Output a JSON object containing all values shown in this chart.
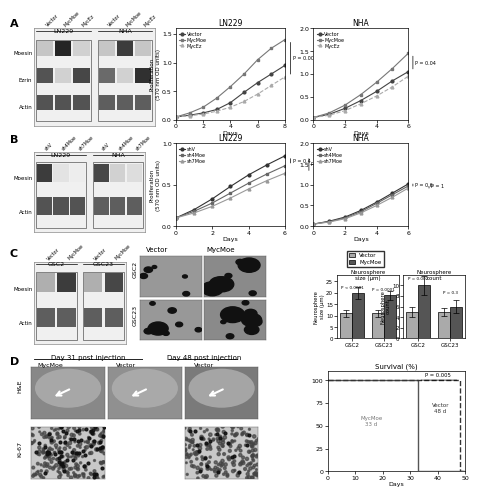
{
  "panel_A": {
    "LN229_prolif": {
      "days": [
        0,
        1,
        2,
        3,
        4,
        5,
        6,
        7,
        8
      ],
      "Vector": [
        0.05,
        0.08,
        0.12,
        0.18,
        0.3,
        0.48,
        0.65,
        0.8,
        0.95
      ],
      "MycMoe": [
        0.05,
        0.12,
        0.22,
        0.38,
        0.58,
        0.8,
        1.05,
        1.25,
        1.4
      ],
      "MycEz": [
        0.05,
        0.07,
        0.1,
        0.15,
        0.22,
        0.32,
        0.45,
        0.6,
        0.75
      ],
      "title": "LN229",
      "ylabel": "Proliferation\n(570 nm OD units)",
      "xlabel": "Days",
      "ylim": [
        0,
        1.6
      ],
      "yticks": [
        0,
        0.5,
        1.0,
        1.5
      ],
      "xticks": [
        0,
        2,
        4,
        6,
        8
      ],
      "pval": "P = 0.0001"
    },
    "NHA_prolif": {
      "days": [
        0,
        1,
        2,
        3,
        4,
        5,
        6
      ],
      "Vector": [
        0.05,
        0.12,
        0.25,
        0.42,
        0.62,
        0.85,
        1.05
      ],
      "MycMoe": [
        0.05,
        0.15,
        0.32,
        0.55,
        0.82,
        1.12,
        1.45
      ],
      "MycEz": [
        0.05,
        0.1,
        0.2,
        0.35,
        0.52,
        0.72,
        0.95
      ],
      "title": "NHA",
      "xlabel": "Days",
      "ylim": [
        0,
        2.0
      ],
      "yticks": [
        0,
        0.5,
        1.0,
        1.5,
        2.0
      ],
      "xticks": [
        0,
        2,
        4,
        6
      ],
      "pval": "P = 0.04"
    }
  },
  "panel_B": {
    "LN229_prolif": {
      "days": [
        0,
        1,
        2,
        3,
        4,
        5,
        6
      ],
      "shV": [
        0.1,
        0.2,
        0.33,
        0.48,
        0.62,
        0.74,
        0.85
      ],
      "sh4Moe": [
        0.1,
        0.18,
        0.28,
        0.4,
        0.52,
        0.63,
        0.73
      ],
      "sh7Moe": [
        0.1,
        0.16,
        0.24,
        0.34,
        0.45,
        0.55,
        0.64
      ],
      "title": "LN229",
      "ylabel": "Proliferation\n(570 nm OD units)",
      "xlabel": "Days",
      "ylim": [
        0,
        1.0
      ],
      "yticks": [
        0.0,
        0.5,
        1.0
      ],
      "xticks": [
        0,
        2,
        4,
        6
      ],
      "pval1": "P = 0.4",
      "pval2": "P = 0.2"
    },
    "NHA_prolif": {
      "days": [
        0,
        1,
        2,
        3,
        4,
        5,
        6
      ],
      "shV": [
        0.05,
        0.12,
        0.22,
        0.38,
        0.58,
        0.8,
        1.02
      ],
      "sh4Moe": [
        0.05,
        0.11,
        0.2,
        0.35,
        0.55,
        0.76,
        0.97
      ],
      "sh7Moe": [
        0.05,
        0.1,
        0.18,
        0.32,
        0.5,
        0.7,
        0.92
      ],
      "title": "NHA",
      "xlabel": "Days",
      "ylim": [
        0,
        2.0
      ],
      "yticks": [
        0,
        0.5,
        1.0,
        1.5,
        2.0
      ],
      "xticks": [
        0,
        2,
        4,
        6
      ],
      "pval1": "P = 0.6",
      "pval2": "P = 1"
    }
  },
  "panel_C_bars": {
    "neurosphere_size": {
      "GSC2_Vector": 11,
      "GSC2_MycMoe": 20,
      "GSC23_Vector": 11,
      "GSC23_MycMoe": 19,
      "GSC2_Vector_err": 1.5,
      "GSC2_MycMoe_err": 2.5,
      "GSC23_Vector_err": 1.5,
      "GSC23_MycMoe_err": 2.0,
      "ylabel": "Neurosphere\nsize (μm)",
      "pval_GSC2": "P < 0.0001",
      "pval_GSC23": "P = 0.0001",
      "ylim": [
        0,
        28
      ],
      "yticks": [
        0,
        5,
        10,
        15,
        20,
        25
      ]
    },
    "neurosphere_count": {
      "GSC2_Vector": 5,
      "GSC2_MycMoe": 10,
      "GSC23_Vector": 5,
      "GSC23_MycMoe": 6,
      "GSC2_Vector_err": 1.0,
      "GSC2_MycMoe_err": 1.8,
      "GSC23_Vector_err": 0.8,
      "GSC23_MycMoe_err": 1.2,
      "ylabel": "Neurosphere\ncount",
      "pval_GSC2": "P = 0.002",
      "pval_GSC23": "P = 0.3",
      "ylim": [
        0,
        12
      ],
      "yticks": [
        0,
        2,
        4,
        6,
        8,
        10
      ]
    }
  },
  "panel_D_survival": {
    "days_mycmoe": [
      0,
      10,
      20,
      30,
      33,
      33,
      50
    ],
    "survival_mycmoe": [
      100,
      100,
      100,
      100,
      100,
      0,
      0
    ],
    "days_vector": [
      0,
      10,
      20,
      30,
      40,
      46,
      48,
      48,
      50
    ],
    "survival_vector": [
      100,
      100,
      100,
      100,
      100,
      100,
      100,
      0,
      0
    ],
    "pval": "P = 0.005",
    "ylabel": "Survival (%)",
    "xlabel": "Days",
    "MycMoe_label": "MycMoe\n33 d",
    "Vector_label": "Vector\n48 d",
    "xlim": [
      0,
      50
    ],
    "ylim": [
      0,
      105
    ],
    "xticks": [
      0,
      10,
      20,
      30,
      40,
      50
    ],
    "yticks": [
      0,
      25,
      50,
      75,
      100
    ]
  },
  "colors": {
    "Vector_line": "#444444",
    "MycMoe_line": "#777777",
    "MycEz_line": "#aaaaaa",
    "shV_line": "#333333",
    "sh4Moe_line": "#666666",
    "sh7Moe_line": "#999999",
    "bar_vector": "#aaaaaa",
    "bar_mycmoe": "#555555",
    "wb_bg": "#f0f0f0",
    "wb_dark": "#111111",
    "wb_medium": "#666666",
    "wb_light": "#cccccc",
    "img_bg": "#999999",
    "img_bg_dark": "#777777",
    "bg": "#ffffff"
  },
  "wb_A": {
    "LN229_title": "LN229",
    "NHA_title": "NHA",
    "cols": [
      "Vector",
      "MycMoe",
      "MycEz"
    ],
    "rows": [
      "Moesin",
      "Ezrin",
      "Actin"
    ],
    "LN229_intensities": {
      "Moesin": [
        0.25,
        0.95,
        0.2
      ],
      "Ezrin": [
        0.75,
        0.2,
        0.8
      ],
      "Actin": [
        0.75,
        0.75,
        0.75
      ]
    },
    "NHA_intensities": {
      "Moesin": [
        0.25,
        0.85,
        0.25
      ],
      "Ezrin": [
        0.65,
        0.2,
        0.9
      ],
      "Actin": [
        0.7,
        0.7,
        0.7
      ]
    }
  },
  "wb_B": {
    "LN229_title": "LN229",
    "NHA_title": "NHA",
    "cols": [
      "shV",
      "sh4Moe",
      "sh7Moe"
    ],
    "rows": [
      "Moesin",
      "Actin"
    ],
    "LN229_intensities": {
      "Moesin": [
        0.85,
        0.12,
        0.08
      ],
      "Actin": [
        0.75,
        0.75,
        0.75
      ]
    },
    "NHA_intensities": {
      "Moesin": [
        0.8,
        0.2,
        0.15
      ],
      "Actin": [
        0.7,
        0.7,
        0.7
      ]
    }
  },
  "wb_C": {
    "GSC2_title": "GSC2",
    "GSC23_title": "GSC23",
    "cols": [
      "Vector",
      "MycMoe"
    ],
    "rows": [
      "Moesin",
      "Actin"
    ],
    "GSC2_intensities": {
      "Moesin": [
        0.35,
        0.85
      ],
      "Actin": [
        0.7,
        0.7
      ]
    },
    "GSC23_intensities": {
      "Moesin": [
        0.35,
        0.8
      ],
      "Actin": [
        0.7,
        0.7
      ]
    }
  }
}
